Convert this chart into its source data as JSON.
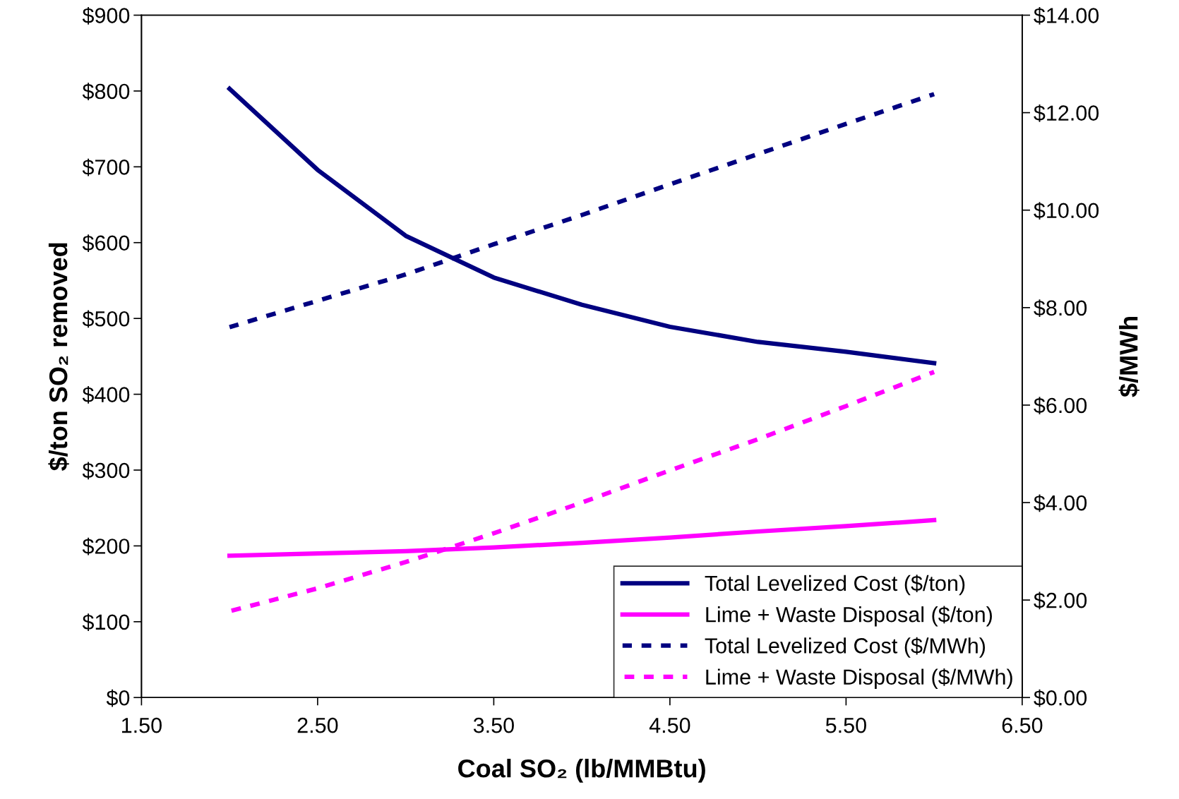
{
  "chart_data": {
    "type": "line",
    "xlabel": "Coal SO₂ (lb/MMBtu)",
    "ylabel": "$/ton SO₂ removed",
    "y2label": "$/MWh",
    "x": [
      2.0,
      2.5,
      3.0,
      3.5,
      4.0,
      4.5,
      5.0,
      5.5,
      6.0
    ],
    "series": [
      {
        "name": "Total Levelized Cost ($/ton)",
        "color": "#000080",
        "line_style": "solid",
        "values": [
          803,
          696,
          609,
          554,
          518,
          489,
          469,
          456,
          441
        ]
      },
      {
        "name": "Lime + Waste Disposal ($/ton)",
        "color": "#ff00ff",
        "line_style": "solid",
        "values": [
          187,
          190,
          193,
          198,
          204,
          211,
          219,
          226,
          234
        ]
      },
      {
        "name": "Total Levelized Cost ($/MWh)",
        "color": "#000080",
        "line_style": "dashed",
        "axis": "y2",
        "values": [
          7.6,
          8.14,
          8.68,
          9.3,
          9.9,
          10.53,
          11.15,
          11.77,
          12.38
        ]
      },
      {
        "name": "Lime + Waste Disposal ($/MWh)",
        "color": "#ff00ff",
        "line_style": "dashed",
        "axis": "y2",
        "values": [
          1.77,
          2.24,
          2.78,
          3.37,
          4.0,
          4.66,
          5.3,
          5.98,
          6.68
        ]
      }
    ],
    "xlim": [
      1.5,
      6.5
    ],
    "xticks": [
      {
        "value": 1.5,
        "label": "1.50"
      },
      {
        "value": 2.5,
        "label": "2.50"
      },
      {
        "value": 3.5,
        "label": "3.50"
      },
      {
        "value": 4.5,
        "label": "4.50"
      },
      {
        "value": 5.5,
        "label": "5.50"
      },
      {
        "value": 6.5,
        "label": "6.50"
      }
    ],
    "ylim": [
      0,
      900
    ],
    "yticks": [
      {
        "value": 0,
        "label": "$0"
      },
      {
        "value": 100,
        "label": "$100"
      },
      {
        "value": 200,
        "label": "$200"
      },
      {
        "value": 300,
        "label": "$300"
      },
      {
        "value": 400,
        "label": "$400"
      },
      {
        "value": 500,
        "label": "$500"
      },
      {
        "value": 600,
        "label": "$600"
      },
      {
        "value": 700,
        "label": "$700"
      },
      {
        "value": 800,
        "label": "$800"
      },
      {
        "value": 900,
        "label": "$900"
      }
    ],
    "y2lim": [
      0,
      14
    ],
    "y2ticks": [
      {
        "value": 0,
        "label": "$0.00"
      },
      {
        "value": 2,
        "label": "$2.00"
      },
      {
        "value": 4,
        "label": "$4.00"
      },
      {
        "value": 6,
        "label": "$6.00"
      },
      {
        "value": 8,
        "label": "$8.00"
      },
      {
        "value": 10,
        "label": "$10.00"
      },
      {
        "value": 12,
        "label": "$12.00"
      },
      {
        "value": 14,
        "label": "$14.00"
      }
    ],
    "grid": false,
    "legend": "bottom right",
    "marker": "none"
  }
}
